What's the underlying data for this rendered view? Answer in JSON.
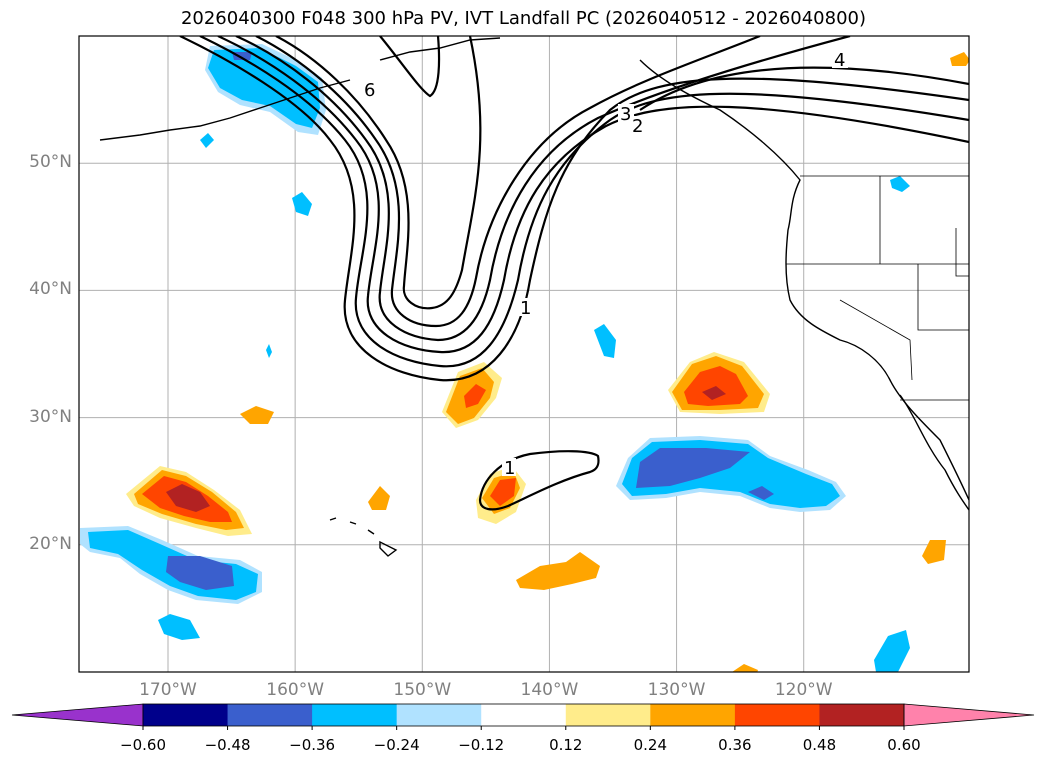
{
  "title": "2026040300 F048 300 hPa PV, IVT Landfall PC (2026040512 - 2026040800)",
  "map": {
    "projection": "PlateCarree",
    "lon_range": [
      -177,
      -107
    ],
    "lat_range": [
      10,
      60
    ],
    "lat_gridlines": [
      20,
      30,
      40,
      50
    ],
    "lon_gridlines": [
      -170,
      -160,
      -150,
      -140,
      -130,
      -120
    ],
    "lat_labels": [
      "20°N",
      "30°N",
      "40°N",
      "50°N"
    ],
    "lon_labels": [
      "170°W",
      "160°W",
      "150°W",
      "140°W",
      "130°W",
      "120°W"
    ],
    "gridline_color": "#b0b0b0",
    "label_color": "#808080"
  },
  "colorbar": {
    "levels": [
      -0.6,
      -0.48,
      -0.36,
      -0.24,
      -0.12,
      0.12,
      0.24,
      0.36,
      0.48,
      0.6
    ],
    "tick_labels": [
      "−0.60",
      "−0.48",
      "−0.36",
      "−0.24",
      "−0.12",
      "0.12",
      "0.24",
      "0.36",
      "0.48",
      "0.60"
    ],
    "colors": [
      "#9932cc",
      "#00008b",
      "#3a5fcd",
      "#00bfff",
      "#b0e2ff",
      "#ffffff",
      "#ffec8b",
      "#ffa500",
      "#ff4500",
      "#b22222",
      "#ff82ab"
    ],
    "extend": "both"
  },
  "contours": {
    "variable": "300 hPa PV",
    "levels": [
      1,
      2,
      3,
      4,
      5,
      6
    ],
    "color": "#000000",
    "labels_shown": [
      "1",
      "2",
      "3",
      "4",
      "6",
      "1"
    ]
  }
}
